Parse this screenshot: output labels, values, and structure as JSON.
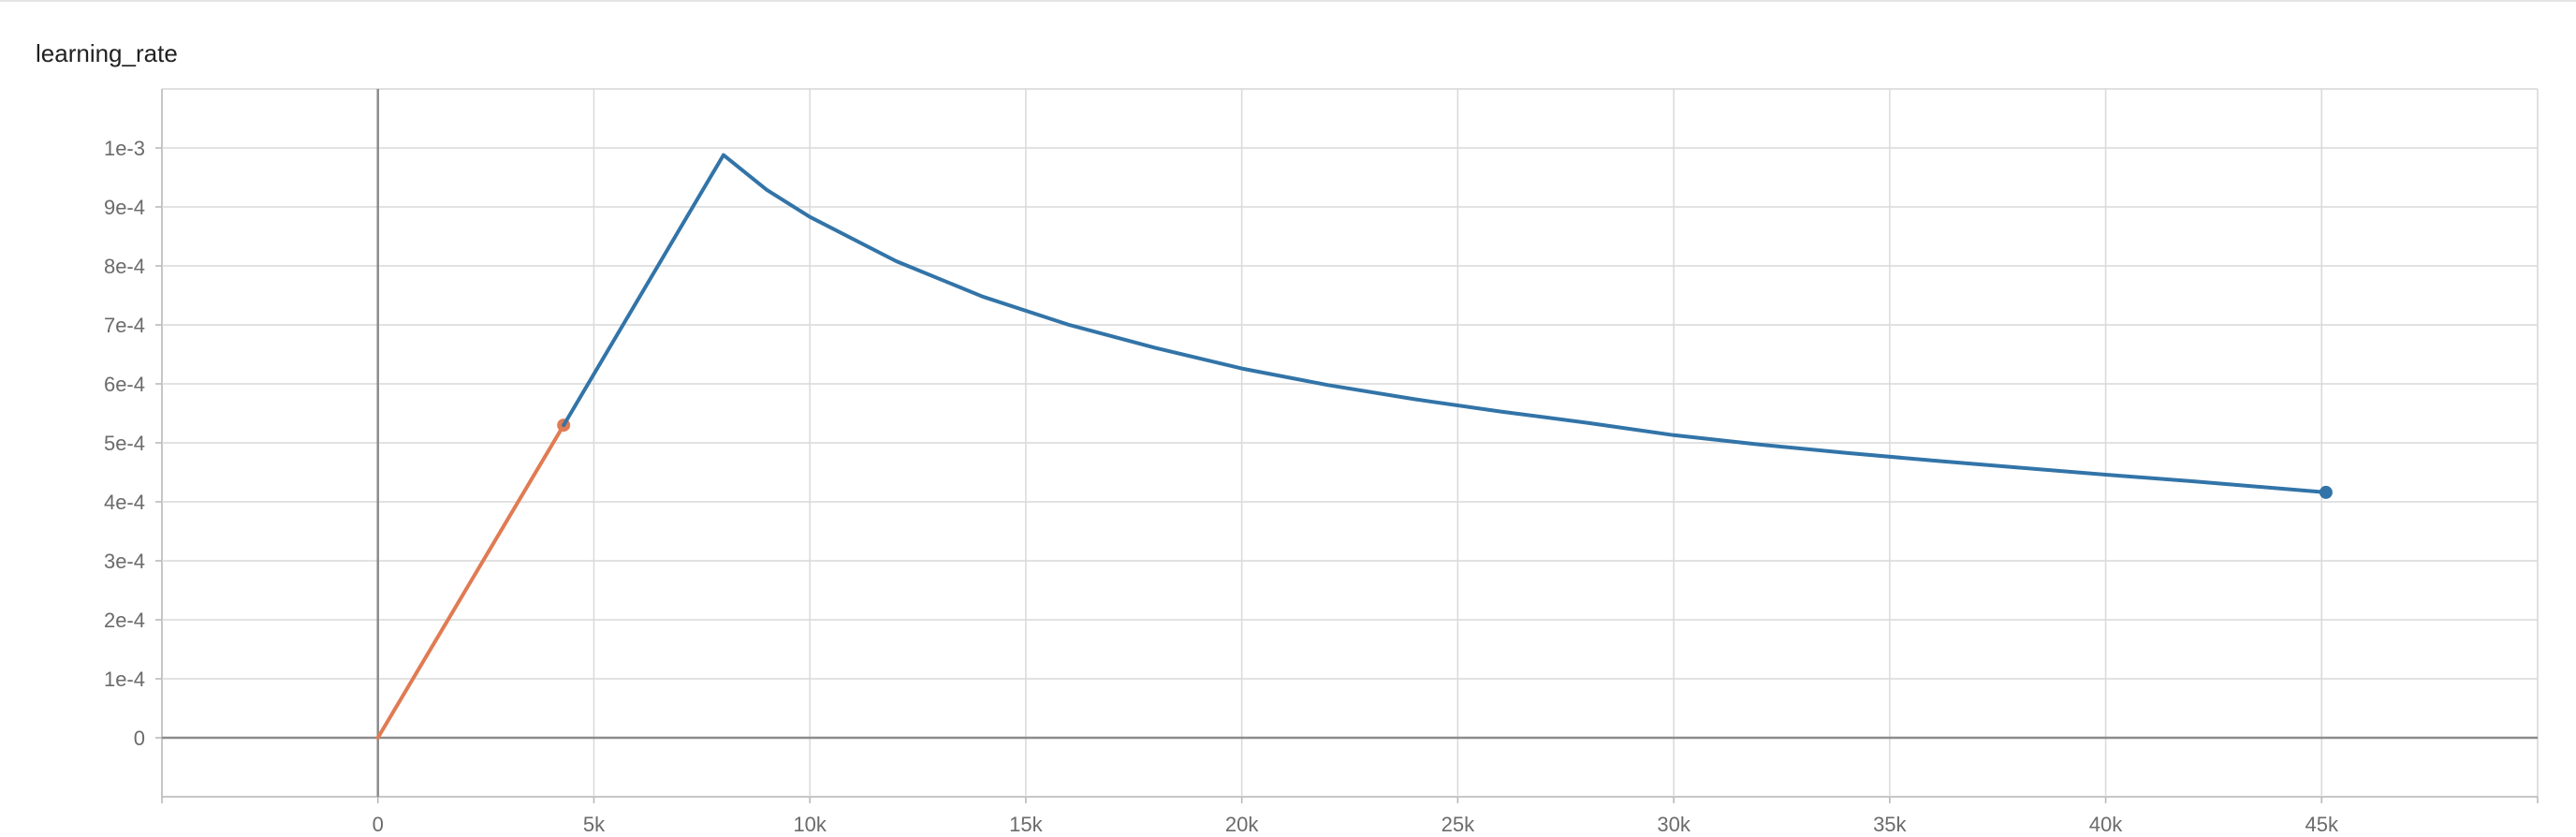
{
  "card": {
    "title": "learning_rate"
  },
  "chart_data": {
    "type": "line",
    "title": "learning_rate",
    "xlabel": "",
    "ylabel": "",
    "xlim": [
      -5000,
      50000
    ],
    "ylim": [
      -0.0001,
      0.0011
    ],
    "grid": true,
    "x_ticks": [
      0,
      5000,
      10000,
      15000,
      20000,
      25000,
      30000,
      35000,
      40000,
      45000
    ],
    "x_tick_labels": [
      "0",
      "5k",
      "10k",
      "15k",
      "20k",
      "25k",
      "30k",
      "35k",
      "40k",
      "45k"
    ],
    "y_ticks": [
      0,
      0.0001,
      0.0002,
      0.0003,
      0.0004,
      0.0005,
      0.0006,
      0.0007,
      0.0008,
      0.0009,
      0.001
    ],
    "y_tick_labels": [
      "0",
      "1e-4",
      "2e-4",
      "3e-4",
      "4e-4",
      "5e-4",
      "6e-4",
      "7e-4",
      "8e-4",
      "9e-4",
      "1e-3"
    ],
    "series": [
      {
        "color": "#e07b53",
        "end_marker": true,
        "x": [
          0,
          4300
        ],
        "y": [
          0,
          0.00053
        ]
      },
      {
        "color": "#3274a8",
        "end_marker": true,
        "x": [
          4300,
          8000,
          9000,
          10000,
          12000,
          14000,
          16000,
          18000,
          20000,
          22000,
          24000,
          26000,
          28000,
          30000,
          32000,
          34000,
          36000,
          38000,
          40000,
          42000,
          45100
        ],
        "y": [
          0.00053,
          0.000988,
          0.000929,
          0.000883,
          0.000808,
          0.000748,
          0.0007,
          0.000661,
          0.000626,
          0.000598,
          0.000574,
          0.000553,
          0.000534,
          0.000513,
          0.000497,
          0.000483,
          0.00047,
          0.000458,
          0.000446,
          0.000435,
          0.000416
        ]
      }
    ]
  }
}
